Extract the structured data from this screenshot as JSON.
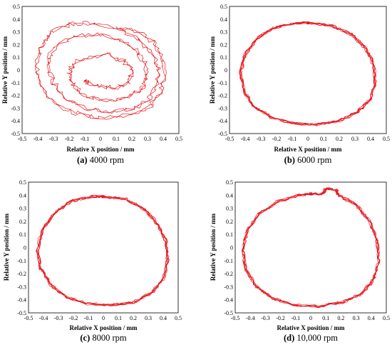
{
  "chart_data": [
    {
      "type": "line",
      "caption_label": "(a)",
      "caption_text": " 4000 rpm",
      "xlabel": "Relative X position / mm",
      "ylabel": "Relative Y position / mm",
      "xlim": [
        -0.5,
        0.5
      ],
      "ylim": [
        -0.5,
        0.5
      ],
      "xticks": [
        "-0.5",
        "-0.4",
        "-0.3",
        "-0.2",
        "-0.1",
        "0",
        "0.1",
        "0.2",
        "0.3",
        "0.4",
        "0.5"
      ],
      "yticks": [
        "-0.5",
        "-0.4",
        "-0.3",
        "-0.2",
        "-0.1",
        "0",
        "0.1",
        "0.2",
        "0.3",
        "0.4",
        "0.5"
      ],
      "grid": false,
      "line_color": "#e8151b",
      "series": [
        {
          "x": [
            0.1,
            0.25,
            0.35,
            0.4,
            0.41,
            0.38,
            0.32,
            0.2,
            0.05,
            -0.1,
            -0.24,
            -0.35,
            -0.4,
            -0.4,
            -0.36,
            -0.3,
            -0.2,
            -0.05,
            0.1,
            0.24,
            0.33,
            0.37,
            0.36,
            0.3,
            0.2,
            0.05,
            -0.1,
            -0.22,
            -0.3,
            -0.33,
            -0.32,
            -0.25,
            -0.15,
            0.0,
            0.12,
            0.22,
            0.28,
            0.3,
            0.27,
            0.2,
            0.08,
            -0.06,
            -0.16,
            -0.2,
            -0.18,
            -0.08,
            0.05,
            0.15,
            0.2,
            0.18,
            0.1,
            0.0,
            -0.08,
            -0.1
          ],
          "y": [
            0.34,
            0.3,
            0.2,
            0.08,
            -0.05,
            -0.18,
            -0.28,
            -0.35,
            -0.38,
            -0.36,
            -0.3,
            -0.18,
            -0.05,
            0.1,
            0.22,
            0.31,
            0.36,
            0.37,
            0.33,
            0.25,
            0.13,
            0.0,
            -0.12,
            -0.24,
            -0.31,
            -0.33,
            -0.3,
            -0.22,
            -0.1,
            0.03,
            0.14,
            0.22,
            0.27,
            0.28,
            0.24,
            0.16,
            0.06,
            -0.05,
            -0.14,
            -0.2,
            -0.24,
            -0.22,
            -0.15,
            -0.05,
            0.05,
            0.1,
            0.12,
            0.07,
            0.0,
            -0.1,
            -0.14,
            -0.13,
            -0.1,
            -0.08
          ]
        }
      ]
    },
    {
      "type": "line",
      "caption_label": "(b)",
      "caption_text": " 6000 rpm",
      "xlabel": "Relative X position / mm",
      "ylabel": "Relative Y position / mm",
      "xlim": [
        -0.5,
        0.5
      ],
      "ylim": [
        -0.5,
        0.5
      ],
      "xticks": [
        "-0.5",
        "-0.4",
        "-0.3",
        "-0.2",
        "-0.1",
        "0",
        "0.1",
        "0.2",
        "0.3",
        "0.4",
        "0.5"
      ],
      "yticks": [
        "-0.5",
        "-0.4",
        "-0.3",
        "-0.2",
        "-0.1",
        "0",
        "0.1",
        "0.2",
        "0.3",
        "0.4",
        "0.5"
      ],
      "grid": false,
      "line_color": "#e8151b",
      "series": [
        {
          "x": [
            0.0,
            0.15,
            0.28,
            0.37,
            0.42,
            0.43,
            0.4,
            0.32,
            0.2,
            0.05,
            -0.1,
            -0.24,
            -0.35,
            -0.41,
            -0.43,
            -0.4,
            -0.33,
            -0.22,
            -0.08,
            0.0
          ],
          "y": [
            0.37,
            0.35,
            0.28,
            0.17,
            0.04,
            -0.1,
            -0.23,
            -0.33,
            -0.4,
            -0.43,
            -0.42,
            -0.37,
            -0.28,
            -0.16,
            -0.02,
            0.12,
            0.24,
            0.33,
            0.37,
            0.37
          ]
        }
      ]
    },
    {
      "type": "line",
      "caption_label": "(c)",
      "caption_text": " 8000 rpm",
      "xlabel": "Relative X position / mm",
      "ylabel": "Relative Y position / mm",
      "xlim": [
        -0.5,
        0.5
      ],
      "ylim": [
        -0.5,
        0.5
      ],
      "xticks": [
        "-0.5",
        "-0.4",
        "-0.3",
        "-0.2",
        "-0.1",
        "0",
        "0.1",
        "0.2",
        "0.3",
        "0.4",
        "0.5"
      ],
      "yticks": [
        "-0.5",
        "-0.4",
        "-0.3",
        "-0.2",
        "-0.1",
        "0",
        "0.1",
        "0.2",
        "0.3",
        "0.4",
        "0.5"
      ],
      "grid": false,
      "line_color": "#e8151b",
      "series": [
        {
          "x": [
            0.0,
            0.15,
            0.28,
            0.37,
            0.42,
            0.43,
            0.4,
            0.32,
            0.2,
            0.05,
            -0.1,
            -0.24,
            -0.35,
            -0.42,
            -0.44,
            -0.41,
            -0.33,
            -0.22,
            -0.08,
            0.0
          ],
          "y": [
            0.39,
            0.37,
            0.29,
            0.17,
            0.04,
            -0.1,
            -0.24,
            -0.35,
            -0.42,
            -0.44,
            -0.43,
            -0.38,
            -0.29,
            -0.16,
            -0.02,
            0.13,
            0.26,
            0.35,
            0.39,
            0.39
          ]
        }
      ]
    },
    {
      "type": "line",
      "caption_label": "(d)",
      "caption_text": " 10,000 rpm",
      "xlabel": "Relative X position / mm",
      "ylabel": "Relative Y position / mm",
      "xlim": [
        -0.5,
        0.5
      ],
      "ylim": [
        -0.5,
        0.5
      ],
      "xticks": [
        "-0.5",
        "-0.4",
        "-0.3",
        "-0.2",
        "-0.1",
        "0",
        "0.1",
        "0.2",
        "0.3",
        "0.4",
        "0.5"
      ],
      "yticks": [
        "-0.5",
        "-0.4",
        "-0.3",
        "-0.2",
        "-0.1",
        "0",
        "0.1",
        "0.2",
        "0.3",
        "0.4",
        "0.5"
      ],
      "grid": false,
      "line_color": "#e8151b",
      "series": [
        {
          "x": [
            0.0,
            0.08,
            0.1,
            0.17,
            0.18,
            0.3,
            0.39,
            0.44,
            0.45,
            0.42,
            0.34,
            0.21,
            0.05,
            -0.11,
            -0.25,
            -0.36,
            -0.43,
            -0.45,
            -0.42,
            -0.34,
            -0.22,
            -0.08,
            0.0
          ],
          "y": [
            0.41,
            0.41,
            0.45,
            0.44,
            0.4,
            0.33,
            0.2,
            0.05,
            -0.1,
            -0.24,
            -0.35,
            -0.42,
            -0.45,
            -0.44,
            -0.39,
            -0.3,
            -0.17,
            -0.02,
            0.13,
            0.26,
            0.35,
            0.4,
            0.41
          ]
        }
      ]
    }
  ]
}
